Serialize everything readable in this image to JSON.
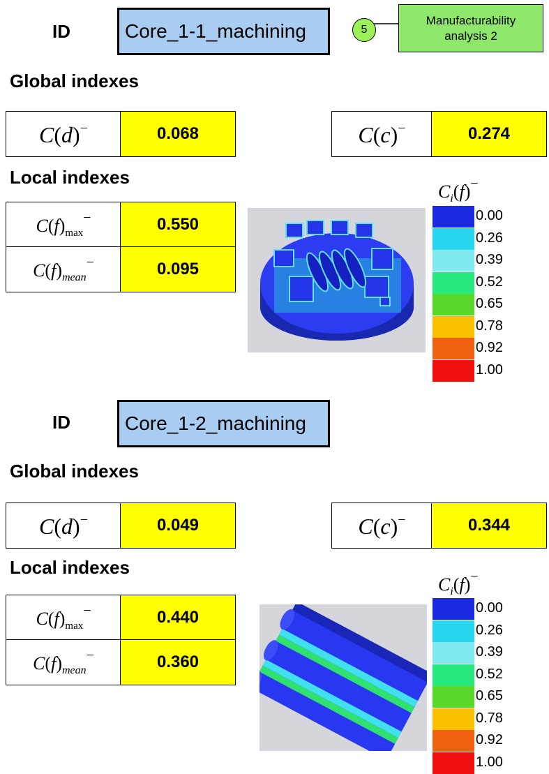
{
  "badge": {
    "number": "5",
    "label": "Manufacturability analysis 2"
  },
  "legend_colors": [
    "#1a2ae0",
    "#28d6f0",
    "#80eaf0",
    "#28e880",
    "#58d828",
    "#f8c000",
    "#f06010",
    "#f01010"
  ],
  "panels": [
    {
      "id_label": "ID",
      "id_value": "Core_1-1_machining",
      "global_heading": "Global indexes",
      "cd_value": "0.068",
      "cc_value": "0.274",
      "local_heading": "Local indexes",
      "cf_max_value": "0.550",
      "cf_mean_value": "0.095",
      "legend_values": [
        "0.00",
        "0.26",
        "0.39",
        "0.52",
        "0.65",
        "0.78",
        "0.92",
        "1.00"
      ]
    },
    {
      "id_label": "ID",
      "id_value": "Core_1-2_machining",
      "global_heading": "Global indexes",
      "cd_value": "0.049",
      "cc_value": "0.344",
      "local_heading": "Local indexes",
      "cf_max_value": "0.440",
      "cf_mean_value": "0.360",
      "legend_values": [
        "0.00",
        "0.26",
        "0.39",
        "0.52",
        "0.65",
        "0.78",
        "0.92",
        "1.00"
      ]
    }
  ]
}
